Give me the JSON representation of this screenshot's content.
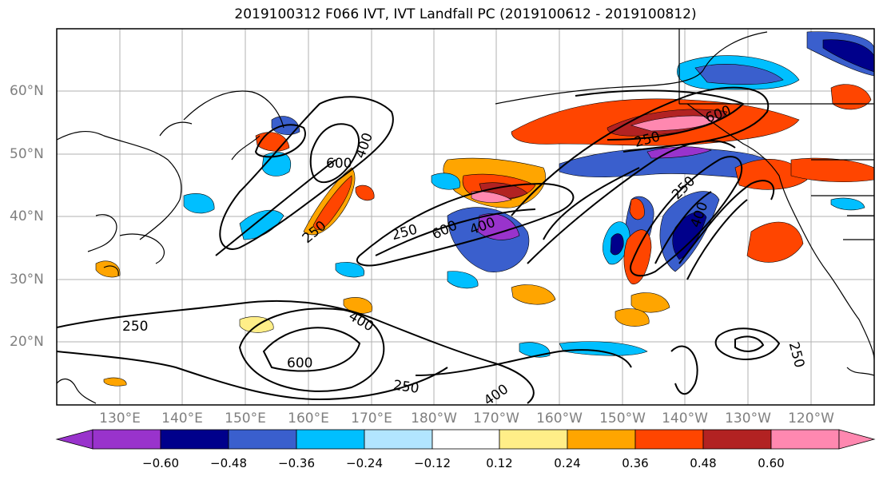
{
  "title": "2019100312 F066 IVT, IVT Landfall PC (2019100612 - 2019100812)",
  "latitude_labels": [
    "60°N",
    "50°N",
    "40°N",
    "30°N",
    "20°N"
  ],
  "longitude_labels": [
    "130°E",
    "140°E",
    "150°E",
    "160°E",
    "170°E",
    "180°W",
    "170°W",
    "160°W",
    "150°W",
    "140°W",
    "130°W",
    "120°W"
  ],
  "contour_labels": [
    "600",
    "400",
    "250",
    "600",
    "400",
    "250",
    "600",
    "400",
    "250",
    "400",
    "250",
    "250",
    "600",
    "400",
    "250",
    "400",
    "250"
  ],
  "colorbar": {
    "tick_labels": [
      "−0.60",
      "−0.48",
      "−0.36",
      "−0.24",
      "−0.12",
      "0.12",
      "0.24",
      "0.36",
      "0.48",
      "0.60"
    ],
    "colors": [
      "#9933cc",
      "#00008b",
      "#3a5fcd",
      "#00bfff",
      "#b2e5ff",
      "#ffffff",
      "#ffee88",
      "#ffa500",
      "#ff4500",
      "#b22222",
      "#ff88b0"
    ]
  }
}
